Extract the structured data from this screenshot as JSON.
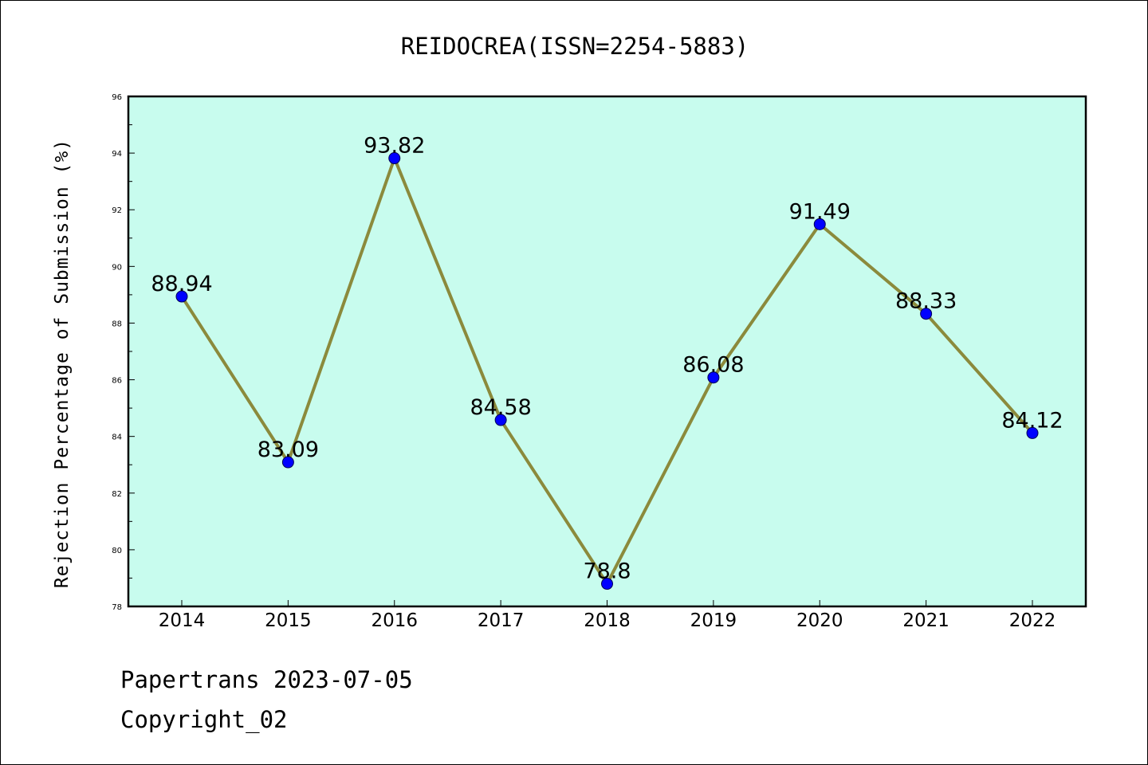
{
  "chart_data": {
    "type": "line",
    "title": "REIDOCREA(ISSN=2254-5883)",
    "xlabel": "",
    "ylabel": "Rejection Percentage of Submission (%)",
    "categories": [
      "2014",
      "2015",
      "2016",
      "2017",
      "2018",
      "2019",
      "2020",
      "2021",
      "2022"
    ],
    "series": [
      {
        "values": [
          88.94,
          83.09,
          93.82,
          84.58,
          78.8,
          86.08,
          91.49,
          88.33,
          84.12
        ],
        "data_labels": [
          "88.94",
          "83.09",
          "93.82",
          "84.58",
          "78.8",
          "86.08",
          "91.49",
          "88.33",
          "84.12"
        ]
      }
    ],
    "ylim": [
      78,
      96
    ],
    "y_ticks": [
      "78",
      "80",
      "82",
      "84",
      "86",
      "88",
      "90",
      "92",
      "94",
      "96"
    ],
    "grid": false,
    "legend": "none",
    "colors": {
      "plot_background": "#c8fcee",
      "line": "#8b8a3c",
      "marker": "#0000ff"
    }
  },
  "footer": {
    "source": "Papertrans 2023-07-05",
    "copyright": "Copyright_02"
  }
}
